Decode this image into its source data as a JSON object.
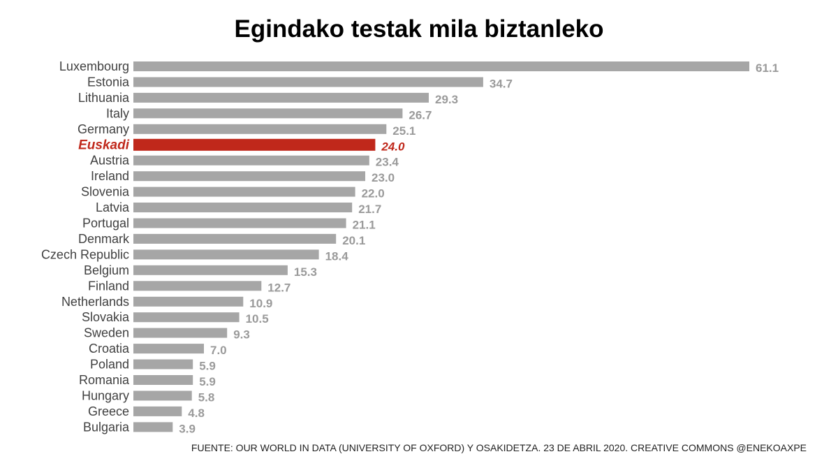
{
  "chart_data": {
    "type": "bar",
    "orientation": "horizontal",
    "title": "Egindako testak mila biztanleko",
    "xlabel": "",
    "ylabel": "",
    "xlim": [
      0,
      61.1
    ],
    "grid": false,
    "categories": [
      "Luxembourg",
      "Estonia",
      "Lithuania",
      "Italy",
      "Germany",
      "Euskadi",
      "Austria",
      "Ireland",
      "Slovenia",
      "Latvia",
      "Portugal",
      "Denmark",
      "Czech Republic",
      "Belgium",
      "Finland",
      "Netherlands",
      "Slovakia",
      "Sweden",
      "Croatia",
      "Poland",
      "Romania",
      "Hungary",
      "Greece",
      "Bulgaria"
    ],
    "values": [
      61.1,
      34.7,
      29.3,
      26.7,
      25.1,
      24.0,
      23.4,
      23.0,
      22.0,
      21.7,
      21.1,
      20.1,
      18.4,
      15.3,
      12.7,
      10.9,
      10.5,
      9.3,
      7.0,
      5.9,
      5.9,
      5.8,
      4.8,
      3.9
    ],
    "value_labels": [
      "61.1",
      "34.7",
      "29.3",
      "26.7",
      "25.1",
      "24.0",
      "23.4",
      "23.0",
      "22.0",
      "21.7",
      "21.1",
      "20.1",
      "18.4",
      "15.3",
      "12.7",
      "10.9",
      "10.5",
      "9.3",
      "7.0",
      "5.9",
      "5.9",
      "5.8",
      "4.8",
      "3.9"
    ],
    "highlight_category": "Euskadi",
    "colors": {
      "bar": "#a6a6a6",
      "highlight": "#c0281b",
      "label": "#404040",
      "value": "#9a9a9a"
    }
  },
  "source_note": "FUENTE: OUR WORLD IN DATA (UNIVERSITY OF OXFORD) Y OSAKIDETZA. 23 DE ABRIL 2020. CREATIVE COMMONS @ENEKOAXPE"
}
